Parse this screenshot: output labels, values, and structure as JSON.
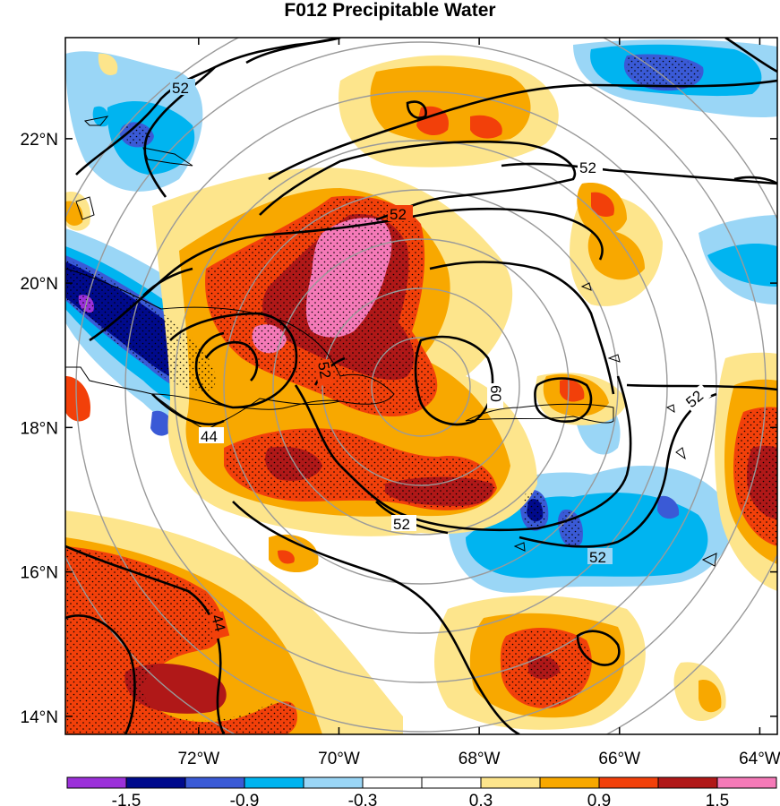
{
  "title": "F012 Precipitable Water",
  "map": {
    "projection": "lat-lon",
    "lon_range": [
      -73.9,
      -63.75
    ],
    "lat_range": [
      13.75,
      23.4
    ],
    "lon_ticks": [
      {
        "value": -72,
        "label": "72°W"
      },
      {
        "value": -70,
        "label": "70°W"
      },
      {
        "value": -68,
        "label": "68°W"
      },
      {
        "value": -66,
        "label": "66°W"
      },
      {
        "value": -64,
        "label": "64°W"
      }
    ],
    "lat_ticks": [
      {
        "value": 22,
        "label": "22°N"
      },
      {
        "value": 20,
        "label": "20°N"
      },
      {
        "value": 18,
        "label": "18°N"
      },
      {
        "value": 16,
        "label": "16°N"
      },
      {
        "value": 14,
        "label": "14°N"
      }
    ],
    "range_rings": {
      "center": [
        -68.7,
        18.6
      ],
      "color": "#9a9a9a",
      "count": 8
    },
    "contour_labels": [
      "52",
      "52",
      "52",
      "52",
      "52",
      "44",
      "44",
      "60",
      "52"
    ],
    "stippling": "dotted where anomaly magnitude is large",
    "colors": {
      "land_outline": "#000000",
      "contours": "#000000"
    }
  },
  "colorbar": {
    "colors": [
      "#9b30d9",
      "#000a8c",
      "#3a5ad6",
      "#00b4f0",
      "#9ad6f6",
      "#ffffff",
      "#ffffff",
      "#fde58c",
      "#f8a800",
      "#f2400a",
      "#b01818",
      "#f57ab8"
    ],
    "labels": [
      "-1.5",
      "-0.9",
      "-0.3",
      "0.3",
      "0.9",
      "1.5"
    ]
  }
}
